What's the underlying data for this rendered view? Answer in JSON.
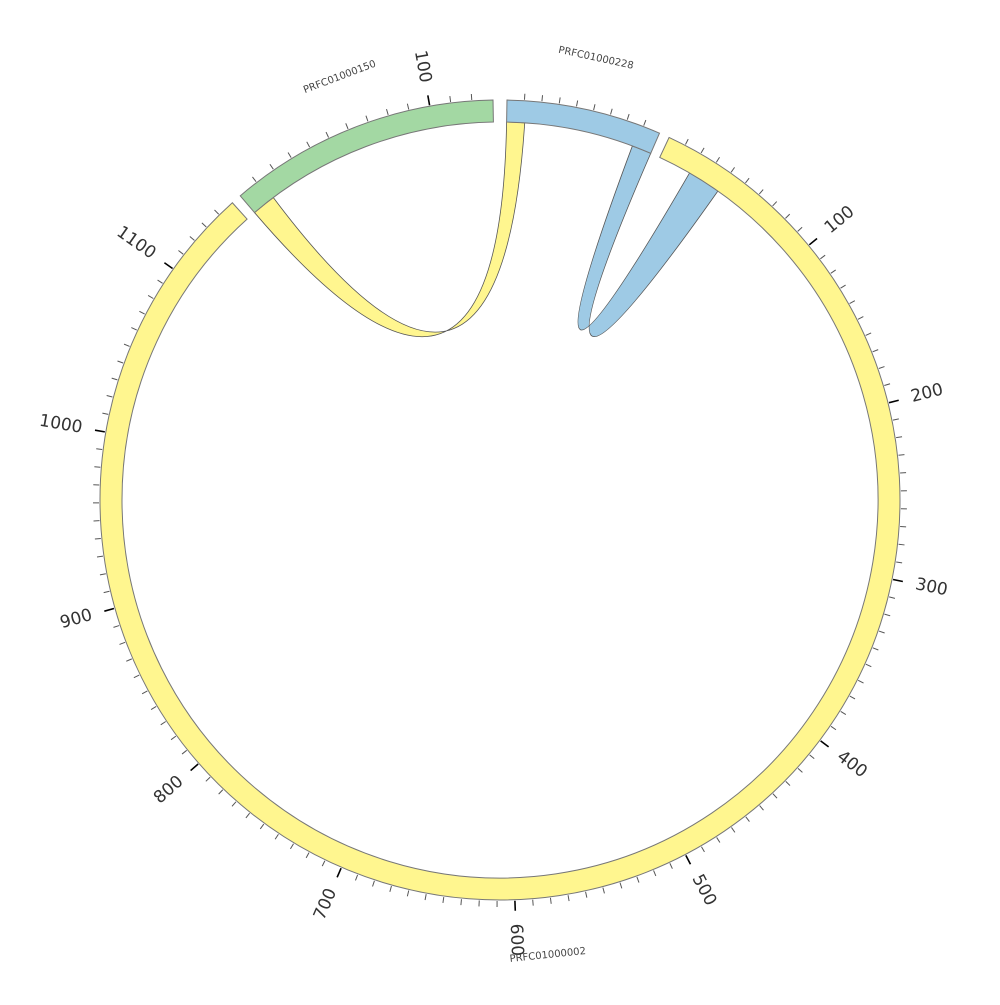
{
  "chart_data": {
    "type": "chord",
    "segments": [
      {
        "name": "PRFC01000002",
        "length": 1150,
        "color": "#FFF68F"
      },
      {
        "name": "PRFC01000150",
        "length": 130,
        "color": "#A3D8A3"
      },
      {
        "name": "PRFC01000228",
        "length": 90,
        "color": "#9ECAE5"
      }
    ],
    "tick_labels": {
      "PRFC01000002": [
        "100",
        "200",
        "300",
        "400",
        "500",
        "600",
        "700",
        "800",
        "900",
        "1000",
        "1100"
      ],
      "PRFC01000150": [
        "100"
      ]
    },
    "links": [
      {
        "from": {
          "segment": "PRFC01000150",
          "start": 0,
          "end": 12
        },
        "to": {
          "segment": "PRFC01000228",
          "start": 0,
          "end": 11
        },
        "color": "#FFF68F"
      },
      {
        "from": {
          "segment": "PRFC01000228",
          "start": 78,
          "end": 90
        },
        "to": {
          "segment": "PRFC01000002",
          "start": 20,
          "end": 40
        },
        "color": "#9ECAE5"
      }
    ]
  }
}
